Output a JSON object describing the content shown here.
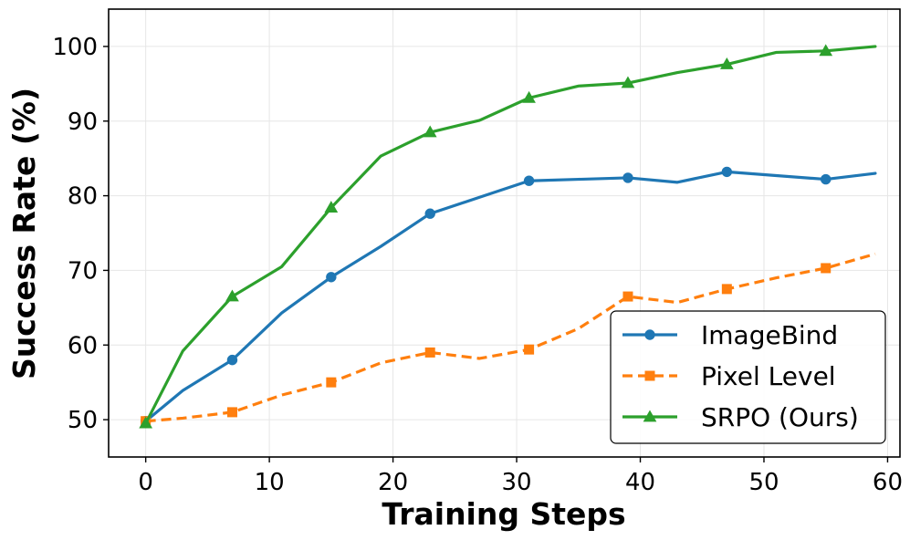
{
  "chart_data": {
    "type": "line",
    "xlabel": "Training Steps",
    "ylabel": "Success Rate (%)",
    "xlim": [
      -3,
      61
    ],
    "ylim": [
      45,
      105
    ],
    "xticks": [
      0,
      10,
      20,
      30,
      40,
      50,
      60
    ],
    "yticks": [
      50,
      60,
      70,
      80,
      90,
      100
    ],
    "grid": true,
    "legend_position": "lower-right",
    "series": [
      {
        "name": "ImageBind",
        "color": "#1f77b4",
        "linestyle": "solid",
        "marker": "circle",
        "x": [
          0,
          3,
          7,
          11,
          15,
          19,
          23,
          27,
          31,
          35,
          39,
          43,
          47,
          51,
          55,
          59
        ],
        "y": [
          49.8,
          53.9,
          58.0,
          64.3,
          69.1,
          73.2,
          77.6,
          79.8,
          82.0,
          82.2,
          82.4,
          81.8,
          83.2,
          82.7,
          82.2,
          83.0
        ],
        "marker_every": [
          0,
          2,
          4,
          6,
          8,
          10,
          12,
          14
        ]
      },
      {
        "name": "Pixel Level",
        "color": "#ff7f0e",
        "linestyle": "dashed",
        "marker": "square",
        "x": [
          0,
          3,
          7,
          11,
          15,
          19,
          23,
          27,
          31,
          35,
          39,
          43,
          47,
          51,
          55,
          59
        ],
        "y": [
          49.8,
          50.2,
          51.0,
          53.3,
          55.0,
          57.6,
          59.0,
          58.2,
          59.4,
          62.2,
          66.5,
          65.7,
          67.5,
          69.0,
          70.3,
          72.2
        ],
        "marker_every": [
          0,
          2,
          4,
          6,
          8,
          10,
          12,
          14
        ]
      },
      {
        "name": "SRPO (Ours)",
        "color": "#2ca02c",
        "linestyle": "solid",
        "marker": "triangle",
        "x": [
          0,
          3,
          7,
          11,
          15,
          19,
          23,
          27,
          31,
          35,
          39,
          43,
          47,
          51,
          55,
          59
        ],
        "y": [
          49.5,
          59.2,
          66.5,
          70.5,
          78.4,
          85.3,
          88.5,
          90.1,
          93.1,
          94.7,
          95.1,
          96.5,
          97.6,
          99.2,
          99.4,
          100.0
        ],
        "marker_every": [
          0,
          2,
          4,
          6,
          8,
          10,
          12,
          14
        ]
      }
    ]
  }
}
